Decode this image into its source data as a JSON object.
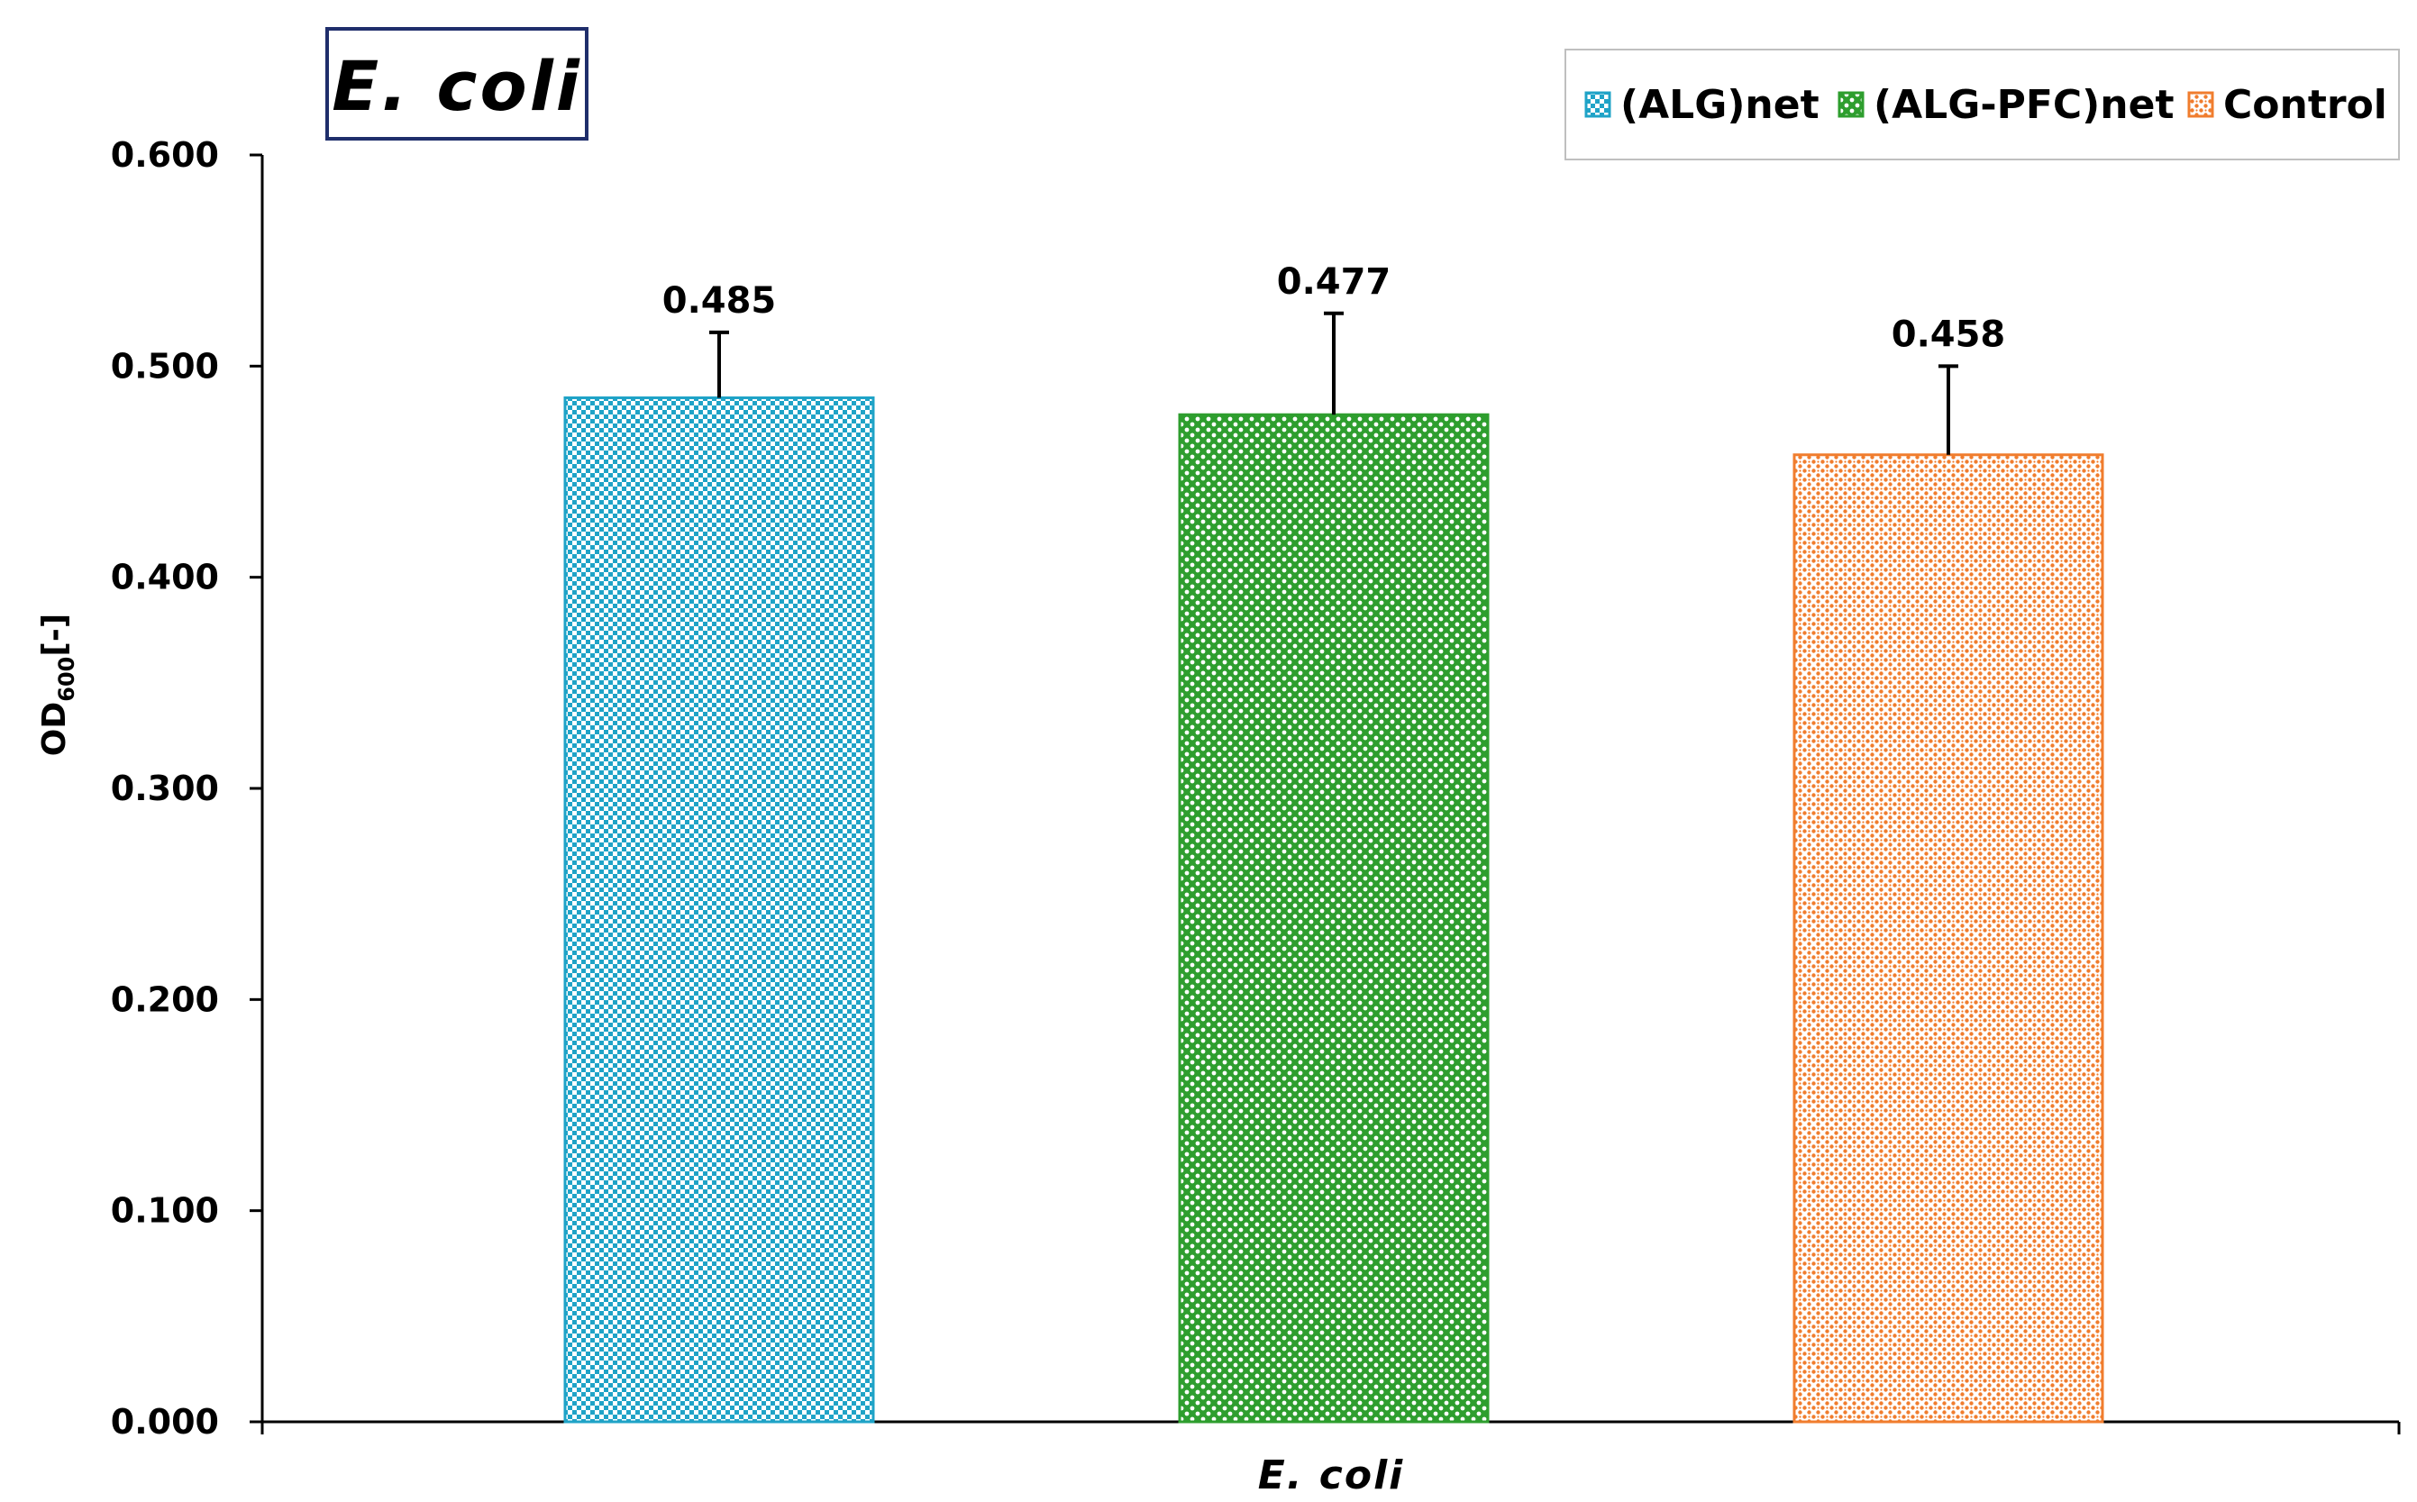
{
  "chart_data": {
    "type": "bar",
    "title": "E. coli",
    "xlabel": "E. coli",
    "ylabel": {
      "main": "OD",
      "sub": "600",
      "suffix": "[-]"
    },
    "ylim": [
      0,
      0.6
    ],
    "yticks": [
      "0.000",
      "0.100",
      "0.200",
      "0.300",
      "0.400",
      "0.500",
      "0.600"
    ],
    "grid": false,
    "legend_position": "top-right",
    "categories": [
      "E. coli"
    ],
    "series": [
      {
        "name": "(ALG)net",
        "values": [
          0.485
        ],
        "error": [
          0.031
        ],
        "label": "0.485",
        "color": "#1FA3C7"
      },
      {
        "name": "(ALG-PFC)net",
        "values": [
          0.477
        ],
        "error": [
          0.048
        ],
        "label": "0.477",
        "color": "#2E9E2E"
      },
      {
        "name": "Control",
        "values": [
          0.458
        ],
        "error": [
          0.042
        ],
        "label": "0.458",
        "color": "#F07D2E"
      }
    ]
  }
}
